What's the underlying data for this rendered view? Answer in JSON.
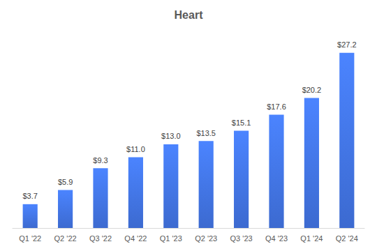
{
  "chart_data": {
    "type": "bar",
    "title": "Heart",
    "categories": [
      "Q1 '22",
      "Q2 '22",
      "Q3 '22",
      "Q4 '22",
      "Q1 '23",
      "Q2 '23",
      "Q3 '23",
      "Q4 '23",
      "Q1 '24",
      "Q2 '24"
    ],
    "values": [
      3.7,
      5.9,
      9.3,
      11.0,
      13.0,
      13.5,
      15.1,
      17.6,
      20.2,
      27.2
    ],
    "value_labels": [
      "$3.7",
      "$5.9",
      "$9.3",
      "$11.0",
      "$13.0",
      "$13.5",
      "$15.1",
      "$17.6",
      "$20.2",
      "$27.2"
    ],
    "color": "#3c6ad0",
    "ylim": [
      0,
      30
    ],
    "grid": false,
    "data_labels": true,
    "tick_labels": "x"
  }
}
